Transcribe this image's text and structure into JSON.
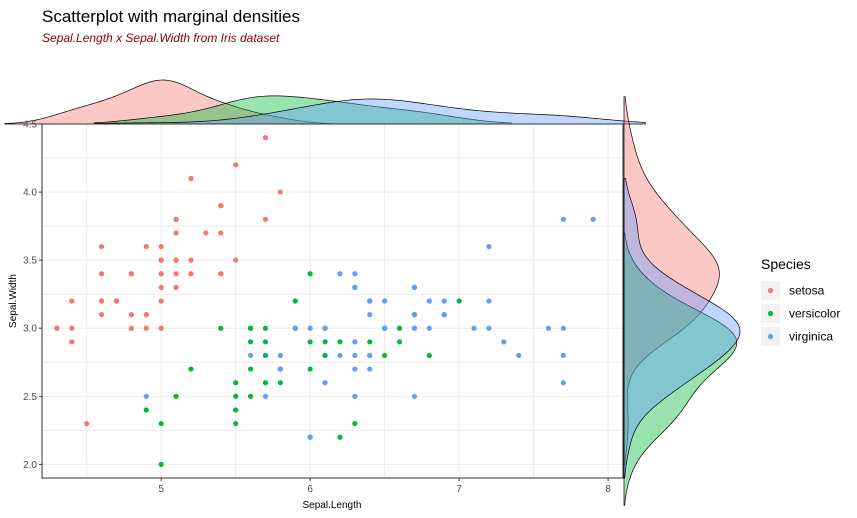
{
  "chart_data": {
    "type": "scatter",
    "title": "Scatterplot with marginal densities",
    "subtitle": "Sepal.Length x Sepal.Width from Iris dataset",
    "xlabel": "Sepal.Length",
    "ylabel": "Sepal.Width",
    "xlim": [
      4.2,
      8.1
    ],
    "ylim": [
      1.9,
      4.5
    ],
    "x_ticks": [
      "5",
      "6",
      "7",
      "8"
    ],
    "y_ticks": [
      "2.0",
      "2.5",
      "3.0",
      "3.5",
      "4.0",
      "4.5"
    ],
    "grid": true,
    "legend": {
      "title": "Species",
      "placement": "right"
    },
    "series": [
      {
        "name": "setosa",
        "color": "#F8766D",
        "x": [
          5.1,
          4.9,
          4.7,
          4.6,
          5.0,
          5.4,
          4.6,
          5.0,
          4.4,
          4.9,
          5.4,
          4.8,
          4.8,
          4.3,
          5.8,
          5.7,
          5.4,
          5.1,
          5.7,
          5.1,
          5.4,
          5.1,
          4.6,
          5.1,
          4.8,
          5.0,
          5.0,
          5.2,
          5.2,
          4.7,
          4.8,
          5.4,
          5.2,
          5.5,
          4.9,
          5.0,
          5.5,
          4.9,
          4.4,
          5.1,
          5.0,
          4.5,
          4.4,
          5.0,
          5.1,
          4.8,
          5.1,
          4.6,
          5.3,
          5.0
        ],
        "y": [
          3.5,
          3.0,
          3.2,
          3.1,
          3.6,
          3.9,
          3.4,
          3.4,
          2.9,
          3.1,
          3.7,
          3.4,
          3.0,
          3.0,
          4.0,
          4.4,
          3.9,
          3.5,
          3.8,
          3.8,
          3.4,
          3.7,
          3.6,
          3.3,
          3.4,
          3.0,
          3.4,
          3.5,
          3.4,
          3.2,
          3.1,
          3.4,
          4.1,
          4.2,
          3.1,
          3.2,
          3.5,
          3.6,
          3.0,
          3.4,
          3.5,
          2.3,
          3.2,
          3.5,
          3.8,
          3.0,
          3.8,
          3.2,
          3.7,
          3.3
        ]
      },
      {
        "name": "versicolor",
        "color": "#00BA38",
        "x": [
          7.0,
          6.4,
          6.9,
          5.5,
          6.5,
          5.7,
          6.3,
          4.9,
          6.6,
          5.2,
          5.0,
          5.9,
          6.0,
          6.1,
          5.6,
          6.7,
          5.6,
          5.8,
          6.2,
          5.6,
          5.9,
          6.1,
          6.3,
          6.1,
          6.4,
          6.6,
          6.8,
          6.7,
          6.0,
          5.7,
          5.5,
          5.5,
          5.8,
          6.0,
          5.4,
          6.0,
          6.7,
          6.3,
          5.6,
          5.5,
          5.5,
          6.1,
          5.8,
          5.0,
          5.6,
          5.7,
          5.7,
          6.2,
          5.1,
          5.7
        ],
        "y": [
          3.2,
          3.2,
          3.1,
          2.3,
          2.8,
          2.8,
          3.3,
          2.4,
          2.9,
          2.7,
          2.0,
          3.0,
          2.2,
          2.9,
          2.9,
          3.1,
          3.0,
          2.7,
          2.2,
          2.5,
          3.2,
          2.8,
          2.5,
          2.8,
          2.9,
          3.0,
          2.8,
          3.0,
          2.9,
          2.6,
          2.4,
          2.4,
          2.7,
          2.7,
          3.0,
          3.4,
          3.1,
          2.3,
          3.0,
          2.5,
          2.6,
          3.0,
          2.6,
          2.3,
          2.7,
          3.0,
          2.9,
          2.9,
          2.5,
          2.8
        ]
      },
      {
        "name": "virginica",
        "color": "#619CFF",
        "x": [
          6.3,
          5.8,
          7.1,
          6.3,
          6.5,
          7.6,
          4.9,
          7.3,
          6.7,
          7.2,
          6.5,
          6.4,
          6.8,
          5.7,
          5.8,
          6.4,
          6.5,
          7.7,
          7.7,
          6.0,
          6.9,
          5.6,
          7.7,
          6.3,
          6.7,
          7.2,
          6.2,
          6.1,
          6.4,
          7.2,
          7.4,
          7.9,
          6.4,
          6.3,
          6.1,
          7.7,
          6.3,
          6.4,
          6.0,
          6.9,
          6.7,
          6.9,
          5.8,
          6.8,
          6.7,
          6.7,
          6.3,
          6.5,
          6.2,
          5.9
        ],
        "y": [
          3.3,
          2.7,
          3.0,
          2.9,
          3.0,
          3.0,
          2.5,
          2.9,
          2.5,
          3.6,
          3.2,
          2.7,
          3.0,
          2.5,
          2.8,
          3.2,
          3.0,
          3.8,
          2.6,
          2.2,
          3.2,
          2.8,
          2.8,
          2.7,
          3.3,
          3.2,
          2.8,
          3.0,
          2.8,
          3.0,
          2.8,
          3.8,
          2.8,
          2.8,
          2.6,
          3.0,
          3.4,
          3.1,
          3.0,
          3.1,
          3.1,
          3.1,
          2.7,
          3.2,
          3.3,
          3.0,
          2.5,
          3.0,
          3.4,
          3.0
        ]
      }
    ]
  }
}
